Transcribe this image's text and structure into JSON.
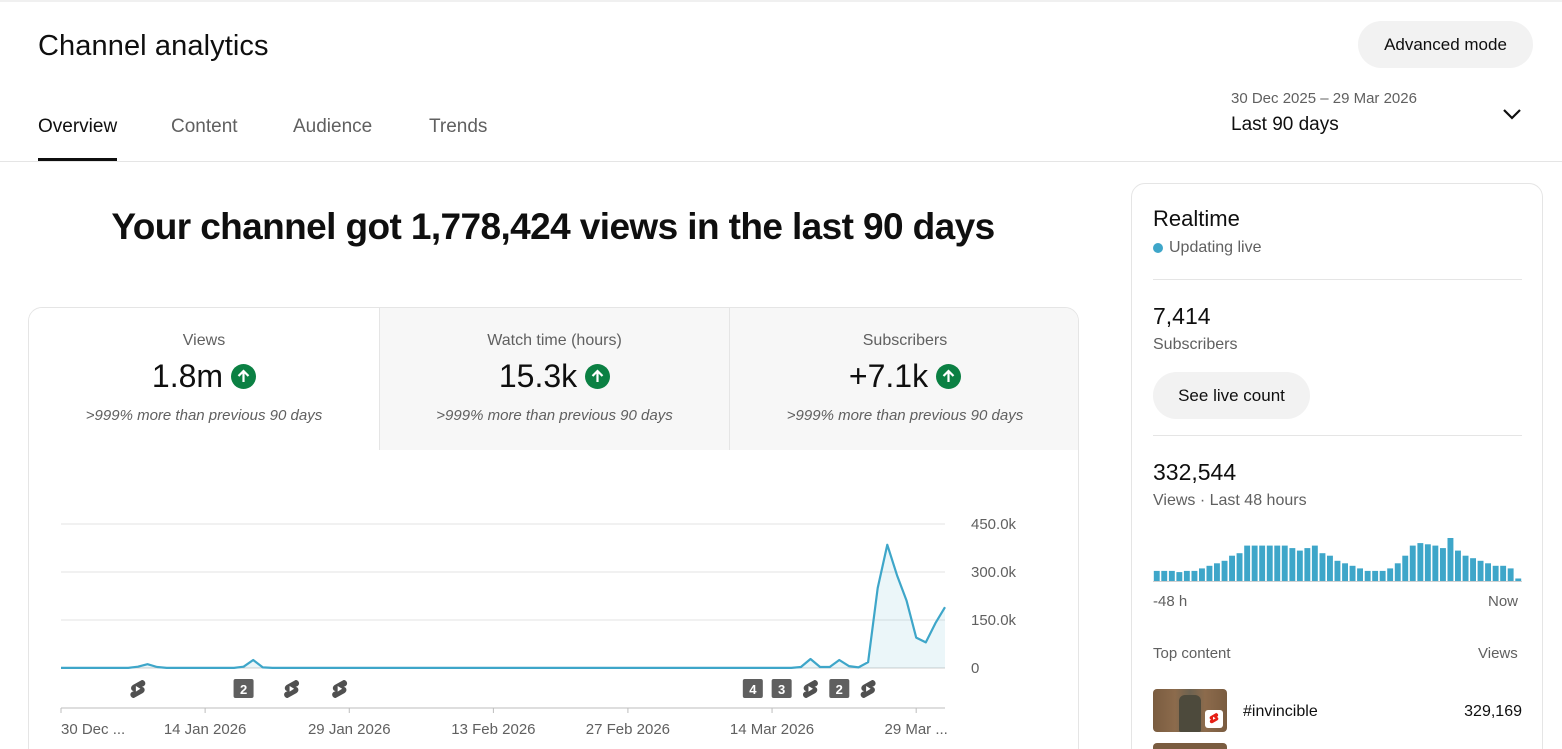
{
  "page": {
    "title": "Channel analytics",
    "advanced_mode": "Advanced mode",
    "tabs": [
      {
        "label": "Overview",
        "active": true
      },
      {
        "label": "Content",
        "active": false
      },
      {
        "label": "Audience",
        "active": false
      },
      {
        "label": "Trends",
        "active": false
      }
    ],
    "date_range": {
      "dates": "30 Dec 2025 – 29 Mar 2026",
      "period": "Last 90 days"
    }
  },
  "headline": "Your channel got 1,778,424 views in the last 90 days",
  "metrics": [
    {
      "label": "Views",
      "value": "1.8m",
      "note": ">999% more than previous 90 days"
    },
    {
      "label": "Watch time (hours)",
      "value": "15.3k",
      "note": ">999% more than previous 90 days"
    },
    {
      "label": "Subscribers",
      "value": "+7.1k",
      "note": ">999% more than previous 90 days"
    }
  ],
  "chart_data": {
    "type": "area",
    "title": "",
    "ylim": [
      0,
      450000
    ],
    "y_ticks": [
      {
        "value": 0,
        "label": "0"
      },
      {
        "value": 150000,
        "label": "150.0k"
      },
      {
        "value": 300000,
        "label": "300.0k"
      },
      {
        "value": 450000,
        "label": "450.0k"
      }
    ],
    "x_tick_labels": [
      "30 Dec ...",
      "14 Jan 2026",
      "29 Jan 2026",
      "13 Feb 2026",
      "27 Feb 2026",
      "14 Mar 2026",
      "29 Mar ..."
    ],
    "x_start_label": "30 Dec 2025",
    "series": [
      {
        "values": [
          300,
          300,
          300,
          300,
          300,
          300,
          300,
          300,
          4000,
          12000,
          3000,
          300,
          300,
          300,
          300,
          300,
          300,
          300,
          300,
          4000,
          25000,
          2000,
          300,
          300,
          300,
          300,
          300,
          300,
          300,
          300,
          300,
          300,
          300,
          300,
          300,
          300,
          300,
          300,
          300,
          300,
          300,
          300,
          300,
          300,
          300,
          300,
          300,
          300,
          300,
          300,
          300,
          300,
          300,
          300,
          300,
          300,
          300,
          300,
          300,
          300,
          300,
          300,
          300,
          300,
          300,
          300,
          300,
          300,
          300,
          300,
          300,
          300,
          300,
          300,
          300,
          300,
          300,
          3000,
          28000,
          3000,
          3000,
          25000,
          6000,
          2000,
          18000,
          250000,
          385000,
          290000,
          210000,
          95000,
          80000,
          140000,
          190000
        ]
      }
    ],
    "upload_markers": [
      {
        "day": 8,
        "count": 1
      },
      {
        "day": 19,
        "count": 2
      },
      {
        "day": 24,
        "count": 1
      },
      {
        "day": 29,
        "count": 1
      },
      {
        "day": 72,
        "count": 4
      },
      {
        "day": 75,
        "count": 3
      },
      {
        "day": 78,
        "count": 1
      },
      {
        "day": 81,
        "count": 2
      },
      {
        "day": 84,
        "count": 1
      }
    ]
  },
  "realtime": {
    "title": "Realtime",
    "live": "Updating live",
    "subs_value": "7,414",
    "subs_label": "Subscribers",
    "live_count_button": "See live count",
    "views_value": "332,544",
    "views_label": "Views · Last 48 hours",
    "axis_left": "-48 h",
    "axis_right": "Now",
    "bar_values": [
      8,
      8,
      8,
      7,
      8,
      8,
      10,
      12,
      14,
      16,
      20,
      22,
      28,
      28,
      28,
      28,
      28,
      28,
      26,
      24,
      26,
      28,
      22,
      20,
      16,
      14,
      12,
      10,
      8,
      8,
      8,
      10,
      14,
      20,
      28,
      30,
      29,
      28,
      26,
      34,
      24,
      20,
      18,
      16,
      14,
      12,
      12,
      10,
      2
    ],
    "top_content_label": "Top content",
    "views_col_label": "Views",
    "top_content": [
      {
        "name": "#invincible",
        "views": "329,169"
      }
    ],
    "colors": {
      "accent": "#3ea6c9"
    }
  },
  "colors": {
    "accent": "#3ea6c9",
    "positive": "#0b8043"
  }
}
